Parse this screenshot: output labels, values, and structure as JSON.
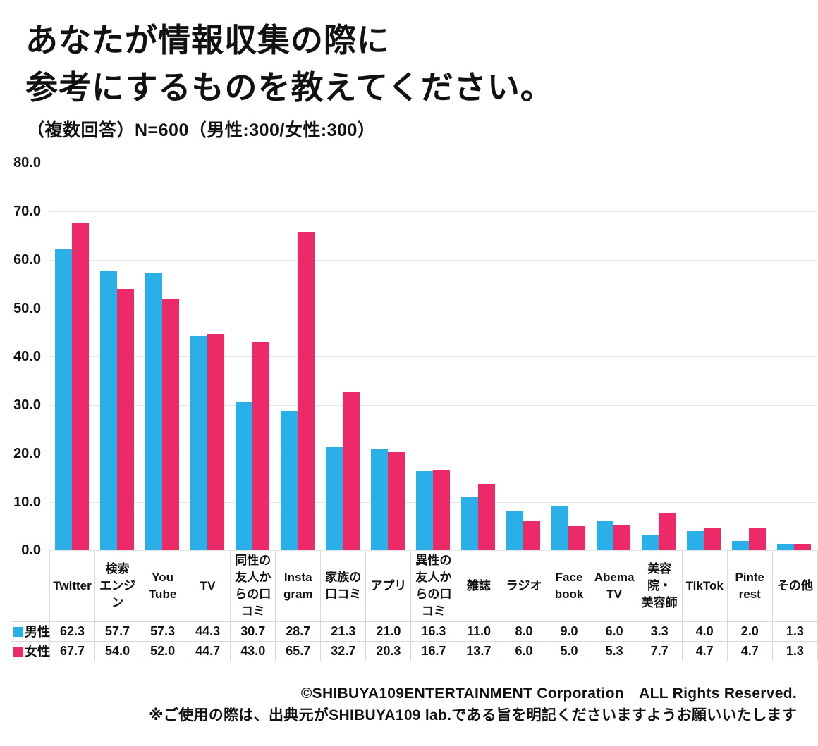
{
  "title_lines": [
    "あなたが情報収集の際に",
    "参考にするものを教えてください。"
  ],
  "subtitle": "（複数回答）N=600（男性:300/女性:300）",
  "footer": {
    "copyright": "©SHIBUYA109ENTERTAINMENT Corporation　ALL Rights Reserved.",
    "note": "※ご使用の際は、出典元がSHIBUYA109 lab.である旨を明記くださいますようお願いいたします"
  },
  "colors": {
    "male": "#2AAFE8",
    "female": "#EB2A67",
    "grid": "#E6E6E6",
    "table_border": "#D9D9D9",
    "text": "#111111"
  },
  "chart_data": {
    "type": "bar",
    "title": "あなたが情報収集の際に参考にするものを教えてください。",
    "subtitle": "（複数回答）N=600（男性:300/女性:300）",
    "categories": [
      "Twitter",
      "検索エンジン",
      "YouTube",
      "TV",
      "同性の友人からの口コミ",
      "Instagram",
      "家族の口コミ",
      "アプリ",
      "異性の友人からの口コミ",
      "雑誌",
      "ラジオ",
      "Facebook",
      "AbemaTV",
      "美容院・美容師",
      "TikTok",
      "Pinterest",
      "その他"
    ],
    "categories_display": [
      "Twitter",
      "検索\nエンジ\nン",
      "You\nTube",
      "TV",
      "同性の\n友人か\nらの口\nコミ",
      "Insta\ngram",
      "家族の\n口コミ",
      "アプリ",
      "異性の\n友人か\nらの口\nコミ",
      "雑誌",
      "ラジオ",
      "Face\nbook",
      "Abema\nTV",
      "美容\n院・\n美容師",
      "TikTok",
      "Pinte\nrest",
      "その他"
    ],
    "series": [
      {
        "name": "男性",
        "color": "#2AAFE8",
        "values": [
          62.3,
          57.7,
          57.3,
          44.3,
          30.7,
          28.7,
          21.3,
          21.0,
          16.3,
          11.0,
          8.0,
          9.0,
          6.0,
          3.3,
          4.0,
          2.0,
          1.3
        ]
      },
      {
        "name": "女性",
        "color": "#EB2A67",
        "values": [
          67.7,
          54.0,
          52.0,
          44.7,
          43.0,
          65.7,
          32.7,
          20.3,
          16.7,
          13.7,
          6.0,
          5.0,
          5.3,
          7.7,
          4.7,
          4.7,
          1.3
        ]
      }
    ],
    "ylim": [
      0,
      80
    ],
    "ytick_step": 10,
    "ytick_labels": [
      "80.0",
      "70.0",
      "60.0",
      "50.0",
      "40.0",
      "30.0",
      "20.0",
      "10.0",
      "0.0"
    ],
    "grid": true,
    "legend_position": "table-left",
    "value_format_decimals": 1
  }
}
